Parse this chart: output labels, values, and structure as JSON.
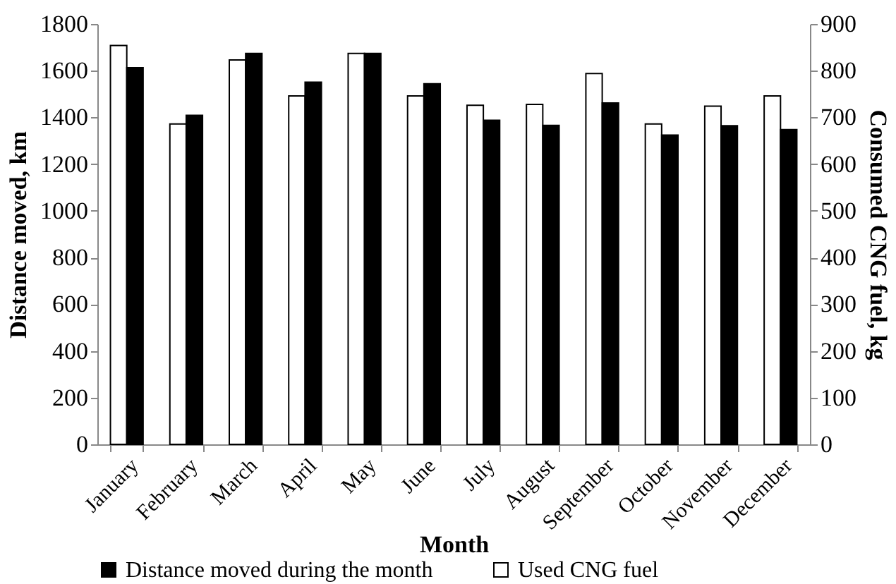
{
  "chart_data": {
    "type": "bar",
    "xlabel": "Month",
    "ylabel": "Distance moved, km",
    "y2label": "Consumed CNG fuel, kg",
    "categories": [
      "January",
      "February",
      "March",
      "April",
      "May",
      "June",
      "July",
      "August",
      "September",
      "October",
      "November",
      "December"
    ],
    "series": [
      {
        "name": "Used CNG fuel",
        "color": "#ffffff",
        "axis": "y2",
        "values": [
          854,
          686,
          823,
          746,
          837,
          746,
          726,
          728,
          794,
          686,
          724,
          746
        ]
      },
      {
        "name": "Distance moved during the month",
        "color": "#000000",
        "values": [
          1613,
          1409,
          1674,
          1551,
          1674,
          1544,
          1388,
          1366,
          1462,
          1324,
          1364,
          1348
        ]
      }
    ],
    "ylim": [
      0,
      1800
    ],
    "yticks": [
      0,
      200,
      400,
      600,
      800,
      1000,
      1200,
      1400,
      1600,
      1800
    ],
    "y2lim": [
      0,
      900
    ],
    "y2ticks": [
      0,
      100,
      200,
      300,
      400,
      500,
      600,
      700,
      800,
      900
    ],
    "grid": false,
    "legend": "bottom"
  }
}
